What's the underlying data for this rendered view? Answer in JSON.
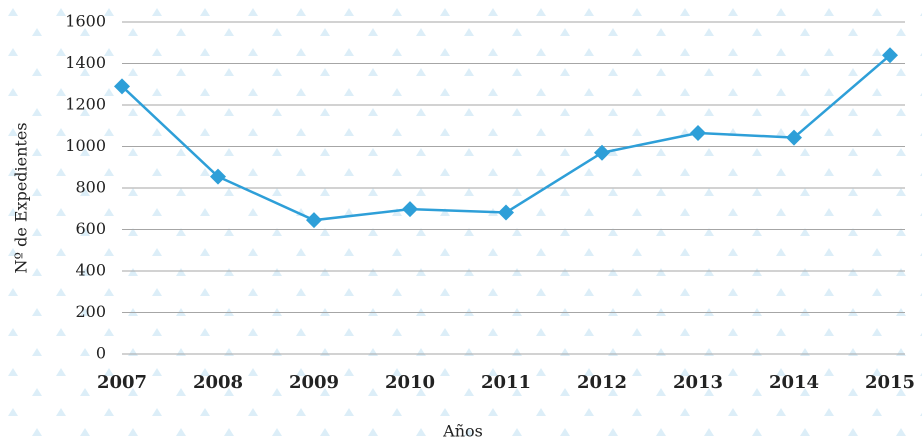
{
  "chart_data": {
    "type": "line",
    "x_label": "Años",
    "y_label": "Nº de Expedientes",
    "categories": [
      "2007",
      "2008",
      "2009",
      "2010",
      "2011",
      "2012",
      "2013",
      "2014",
      "2015"
    ],
    "series": [
      {
        "name": "Nº de Expedientes",
        "color": "#2e9fd8",
        "values": [
          1290,
          855,
          645,
          698,
          682,
          970,
          1065,
          1043,
          1440
        ]
      }
    ],
    "ylim": [
      0,
      1600
    ],
    "yticks": [
      0,
      200,
      400,
      600,
      800,
      1000,
      1200,
      1400,
      1600
    ],
    "grid": true
  }
}
